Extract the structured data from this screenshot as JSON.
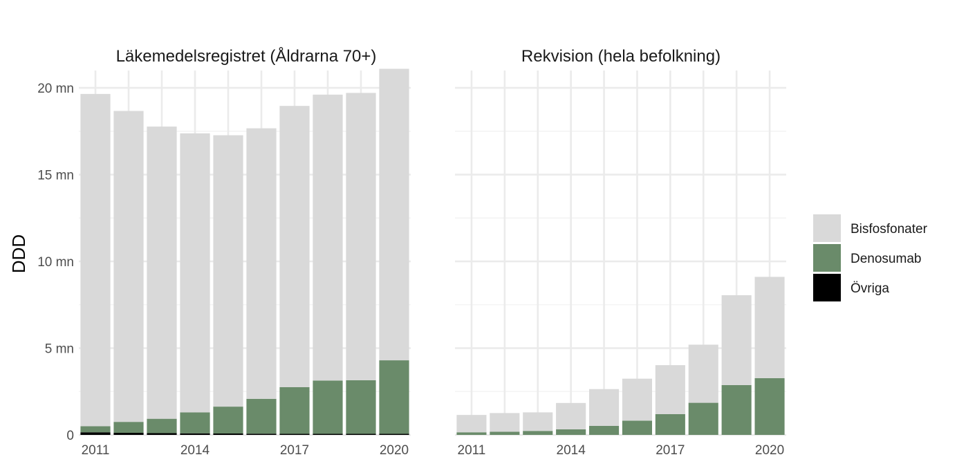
{
  "chart_data": {
    "type": "bar",
    "stacked": true,
    "ylabel": "DDD",
    "xlabel": "",
    "ylim": [
      0,
      21000000
    ],
    "y_ticks": [
      {
        "value": 0,
        "label": "0"
      },
      {
        "value": 5000000,
        "label": "5 mn"
      },
      {
        "value": 10000000,
        "label": "10 mn"
      },
      {
        "value": 15000000,
        "label": "15 mn"
      },
      {
        "value": 20000000,
        "label": "20 mn"
      }
    ],
    "x_ticks": [
      "2011",
      "2014",
      "2017",
      "2020"
    ],
    "categories": [
      "2011",
      "2012",
      "2013",
      "2014",
      "2015",
      "2016",
      "2017",
      "2018",
      "2019",
      "2020"
    ],
    "colors": {
      "Bisfosfonater": "#d9d9d9",
      "Denosumab": "#6a8b6a",
      "Övriga": "#000000"
    },
    "legend": {
      "position": "right",
      "entries": [
        "Bisfosfonater",
        "Denosumab",
        "Övriga"
      ]
    },
    "grid": true,
    "panels": [
      {
        "title": "Läkemedelsregistret (Åldrarna 70+)",
        "series": [
          {
            "name": "Övriga",
            "values": [
              150000,
              120000,
              100000,
              90000,
              80000,
              70000,
              60000,
              60000,
              60000,
              60000
            ]
          },
          {
            "name": "Denosumab",
            "values": [
              350000,
              630000,
              830000,
              1210000,
              1550000,
              2010000,
              2690000,
              3070000,
              3090000,
              4240000
            ]
          },
          {
            "name": "Bisfosfonater",
            "values": [
              19150000,
              17920000,
              16840000,
              16080000,
              15640000,
              15590000,
              16210000,
              16480000,
              16560000,
              16800000
            ]
          }
        ]
      },
      {
        "title": "Rekvision (hela befolkning)",
        "series": [
          {
            "name": "Övriga",
            "values": [
              0,
              0,
              0,
              0,
              0,
              0,
              0,
              0,
              0,
              0
            ]
          },
          {
            "name": "Denosumab",
            "values": [
              150000,
              180000,
              230000,
              320000,
              520000,
              820000,
              1200000,
              1850000,
              2870000,
              3270000
            ]
          },
          {
            "name": "Bisfosfonater",
            "values": [
              1000000,
              1080000,
              1070000,
              1520000,
              2120000,
              2420000,
              2820000,
              3350000,
              5180000,
              5840000
            ]
          }
        ]
      }
    ]
  }
}
